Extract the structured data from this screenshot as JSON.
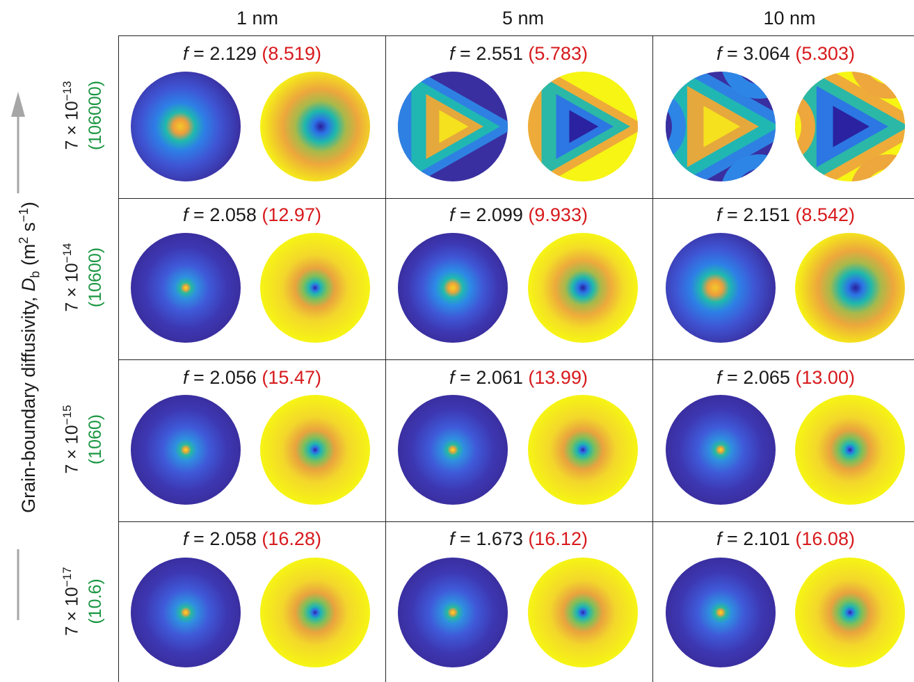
{
  "column_headers": [
    "1 nm",
    "5 nm",
    "10 nm"
  ],
  "y_axis": {
    "label_prefix": "Grain-boundary diffusivity, ",
    "label_symbol": "D",
    "label_sub": "b",
    "label_units_open": " (m",
    "label_units_sq": "2",
    "label_units_mid": " s",
    "label_units_exp": "−1",
    "label_units_close": ")"
  },
  "rows": [
    {
      "value_base": "7 × 10",
      "value_exp": "−13",
      "value_green": "(106000)"
    },
    {
      "value_base": "7 × 10",
      "value_exp": "−14",
      "value_green": "(10600)"
    },
    {
      "value_base": "7 × 10",
      "value_exp": "−15",
      "value_green": "(1060)"
    },
    {
      "value_base": "7 × 10",
      "value_exp": "−17",
      "value_green": "(10.6)"
    }
  ],
  "cells": [
    [
      {
        "f_prefix": "f",
        "f_value": "= 2.129",
        "red": "(8.519)"
      },
      {
        "f_prefix": "f",
        "f_value": "= 2.551",
        "red": "(5.783)"
      },
      {
        "f_prefix": "f",
        "f_value": "= 3.064",
        "red": "(5.303)"
      }
    ],
    [
      {
        "f_prefix": "f",
        "f_value": "= 2.058",
        "red": "(12.97)"
      },
      {
        "f_prefix": "f",
        "f_value": "= 2.099",
        "red": "(9.933)"
      },
      {
        "f_prefix": "f",
        "f_value": "= 2.151",
        "red": "(8.542)"
      }
    ],
    [
      {
        "f_prefix": "f",
        "f_value": "= 2.056",
        "red": "(15.47)"
      },
      {
        "f_prefix": "f",
        "f_value": "= 2.061",
        "red": "(13.99)"
      },
      {
        "f_prefix": "f",
        "f_value": "= 2.065",
        "red": "(13.00)"
      }
    ],
    [
      {
        "f_prefix": "f",
        "f_value": "= 2.058",
        "red": "(16.28)"
      },
      {
        "f_prefix": "f",
        "f_value": "= 1.673",
        "red": "(16.12)"
      },
      {
        "f_prefix": "f",
        "f_value": "= 2.101",
        "red": "(16.08)"
      }
    ]
  ],
  "colors": {
    "red_values": "#d7191c",
    "green_values": "#1a9641",
    "map_dark": "#3d2fa8",
    "map_yellow": "#f5f214"
  }
}
